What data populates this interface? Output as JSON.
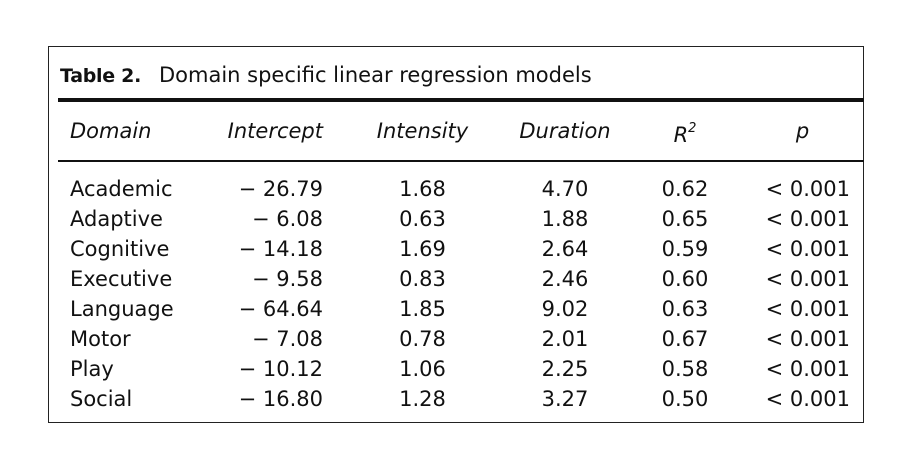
{
  "table": {
    "label": "Table 2.",
    "title": "Domain specific linear regression models",
    "columns": {
      "domain": "Domain",
      "intercept": "Intercept",
      "intensity": "Intensity",
      "duration": "Duration",
      "r2_base": "R",
      "r2_sup": "2",
      "p": "p"
    },
    "rows": [
      {
        "domain": "Academic",
        "intercept": "− 26.79",
        "intensity": "1.68",
        "duration": "4.70",
        "r2": "0.62",
        "p": "< 0.001"
      },
      {
        "domain": "Adaptive",
        "intercept": "− 6.08",
        "intensity": "0.63",
        "duration": "1.88",
        "r2": "0.65",
        "p": "< 0.001"
      },
      {
        "domain": "Cognitive",
        "intercept": "− 14.18",
        "intensity": "1.69",
        "duration": "2.64",
        "r2": "0.59",
        "p": "< 0.001"
      },
      {
        "domain": "Executive",
        "intercept": "− 9.58",
        "intensity": "0.83",
        "duration": "2.46",
        "r2": "0.60",
        "p": "< 0.001"
      },
      {
        "domain": "Language",
        "intercept": "− 64.64",
        "intensity": "1.85",
        "duration": "9.02",
        "r2": "0.63",
        "p": "< 0.001"
      },
      {
        "domain": "Motor",
        "intercept": "− 7.08",
        "intensity": "0.78",
        "duration": "2.01",
        "r2": "0.67",
        "p": "< 0.001"
      },
      {
        "domain": "Play",
        "intercept": "− 10.12",
        "intensity": "1.06",
        "duration": "2.25",
        "r2": "0.58",
        "p": "< 0.001"
      },
      {
        "domain": "Social",
        "intercept": "− 16.80",
        "intensity": "1.28",
        "duration": "3.27",
        "r2": "0.50",
        "p": "< 0.001"
      }
    ]
  }
}
